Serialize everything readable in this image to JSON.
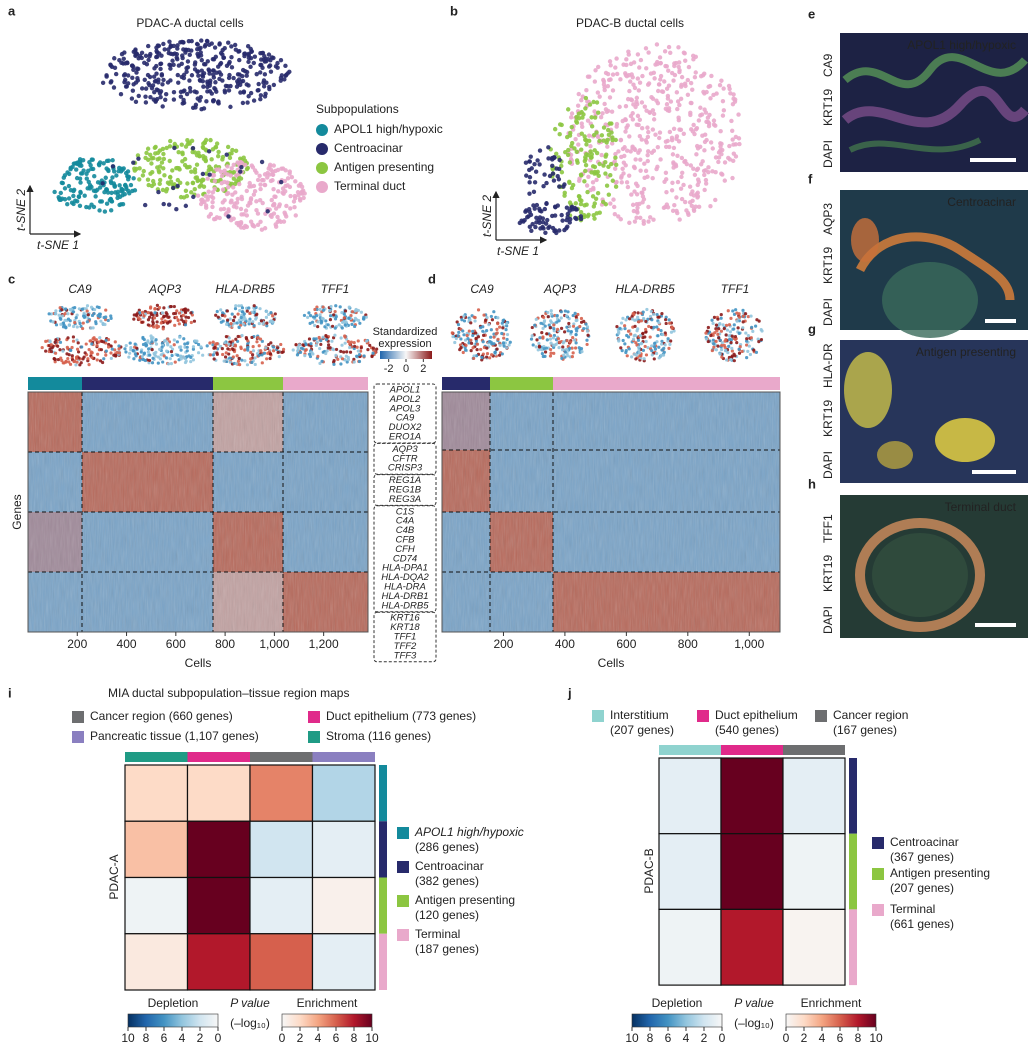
{
  "panels": {
    "a": {
      "letter": "a",
      "title": "PDAC-A ductal cells",
      "y_axis": "t-SNE 2",
      "x_axis": "t-SNE 1",
      "legend_title": "Subpopulations",
      "legend": [
        {
          "name": "APOL1 high/hypoxic",
          "color": "#138a9c"
        },
        {
          "name": "Centroacinar",
          "color": "#272a6b"
        },
        {
          "name": "Antigen presenting",
          "color": "#8cc641"
        },
        {
          "name": "Terminal duct",
          "color": "#e9a9cb"
        }
      ]
    },
    "b": {
      "letter": "b",
      "title": "PDAC-B ductal cells",
      "y_axis": "t-SNE 2",
      "x_axis": "t-SNE 1"
    },
    "c": {
      "letter": "c",
      "genes": [
        "CA9",
        "AQP3",
        "HLA-DRB5",
        "TFF1"
      ],
      "y_axis": "Genes",
      "x_axis": "Cells",
      "xlim": [
        0,
        1380
      ],
      "xticks": [
        200,
        400,
        600,
        800,
        {
          "value": 1000,
          "label": "1,000"
        },
        {
          "value": 1200,
          "label": "1,200"
        }
      ]
    },
    "d": {
      "letter": "d",
      "genes": [
        "CA9",
        "AQP3",
        "HLA-DRB5",
        "TFF1"
      ],
      "x_axis": "Cells",
      "xlim": [
        0,
        1100
      ],
      "xticks": [
        200,
        400,
        600,
        800,
        {
          "value": 1000,
          "label": "1,000"
        }
      ]
    },
    "expression_scale": {
      "title": [
        "Standardized",
        "expression"
      ],
      "lim": [
        -3,
        3
      ],
      "ticks": [
        -2,
        0,
        2
      ]
    },
    "marker_genes": [
      "APOL1",
      "APOL2",
      "APOL3",
      "CA9",
      "DUOX2",
      "ERO1A",
      "AQP3",
      "CFTR",
      "CRISP3",
      "REG1A",
      "REG1B",
      "REG3A",
      "C1S",
      "C4A",
      "C4B",
      "CFB",
      "CFH",
      "CD74",
      "HLA-DPA1",
      "HLA-DQA2",
      "HLA-DRA",
      "HLA-DRB1",
      "HLA-DRB5",
      "KRT16",
      "KRT18",
      "TFF1",
      "TFF2",
      "TFF3"
    ],
    "e": {
      "letter": "e",
      "stains": [
        "CA9",
        "KRT19",
        "DAPI"
      ],
      "label": "APOL1 high/hypoxic"
    },
    "f": {
      "letter": "f",
      "stains": [
        "AQP3",
        "KRT19",
        "DAPI"
      ],
      "label": "Centroacinar"
    },
    "g": {
      "letter": "g",
      "stains": [
        "HLA-DR",
        "KRT19",
        "DAPI"
      ],
      "label": "Antigen presenting"
    },
    "h": {
      "letter": "h",
      "stains": [
        "TFF1",
        "KRT19",
        "DAPI"
      ],
      "label": "Terminal duct"
    }
  },
  "chart_data": [
    {
      "type": "heatmap",
      "letter": "i",
      "title": "MIA ductal subpopulation–tissue region maps",
      "y_axis": "PDAC-A",
      "columns": [
        {
          "name": "Stroma (116 genes)",
          "color": "#1f9b85"
        },
        {
          "name": "Duct epithelium (773 genes)",
          "color": "#e02a8a"
        },
        {
          "name": "Cancer region (660 genes)",
          "color": "#6d6e70"
        },
        {
          "name": "Pancreatic tissue (1,107 genes)",
          "color": "#8a7fc0"
        }
      ],
      "rows": [
        {
          "name": "APOL1 high/hypoxic",
          "genes": "(286 genes)",
          "color": "#138a9c"
        },
        {
          "name": "Centroacinar",
          "genes": "(382 genes)",
          "color": "#272a6b"
        },
        {
          "name": "Antigen presenting",
          "genes": "(120 genes)",
          "color": "#8cc641"
        },
        {
          "name": "Terminal",
          "genes": "(187 genes)",
          "color": "#e9a9cb"
        }
      ],
      "values": [
        [
          2,
          2,
          5,
          -3
        ],
        [
          3,
          10,
          -2,
          -1
        ],
        [
          -0.5,
          10,
          -1,
          0.5
        ],
        [
          1,
          8,
          6,
          -1
        ]
      ],
      "depletion_label": "Depletion",
      "enrichment_label": "Enrichment",
      "pvalue_label": "P value",
      "pvalue_unit": "(–log₁₀)",
      "clim": [
        0,
        10
      ],
      "depletion_ticks": [
        10,
        8,
        6,
        4,
        2,
        0
      ],
      "enrichment_ticks": [
        0,
        2,
        4,
        6,
        8,
        10
      ]
    },
    {
      "type": "heatmap",
      "letter": "j",
      "y_axis": "PDAC-B",
      "columns": [
        {
          "name": "Interstitium",
          "genes": "(207 genes)",
          "color": "#8fd3cf"
        },
        {
          "name": "Duct epithelium",
          "genes": "(540 genes)",
          "color": "#e02a8a"
        },
        {
          "name": "Cancer region",
          "genes": "(167 genes)",
          "color": "#6d6e70"
        }
      ],
      "rows": [
        {
          "name": "Centroacinar",
          "genes": "(367 genes)",
          "color": "#272a6b"
        },
        {
          "name": "Antigen presenting",
          "genes": "(207 genes)",
          "color": "#8cc641"
        },
        {
          "name": "Terminal",
          "genes": "(661 genes)",
          "color": "#e9a9cb"
        }
      ],
      "values": [
        [
          -1,
          10,
          -1
        ],
        [
          -1,
          10,
          -0.5
        ],
        [
          -0.5,
          8,
          0.3
        ]
      ],
      "depletion_label": "Depletion",
      "enrichment_label": "Enrichment",
      "pvalue_label": "P value",
      "pvalue_unit": "(–log₁₀)",
      "clim": [
        0,
        10
      ],
      "depletion_ticks": [
        10,
        8,
        6,
        4,
        2,
        0
      ],
      "enrichment_ticks": [
        0,
        2,
        4,
        6,
        8,
        10
      ]
    }
  ]
}
